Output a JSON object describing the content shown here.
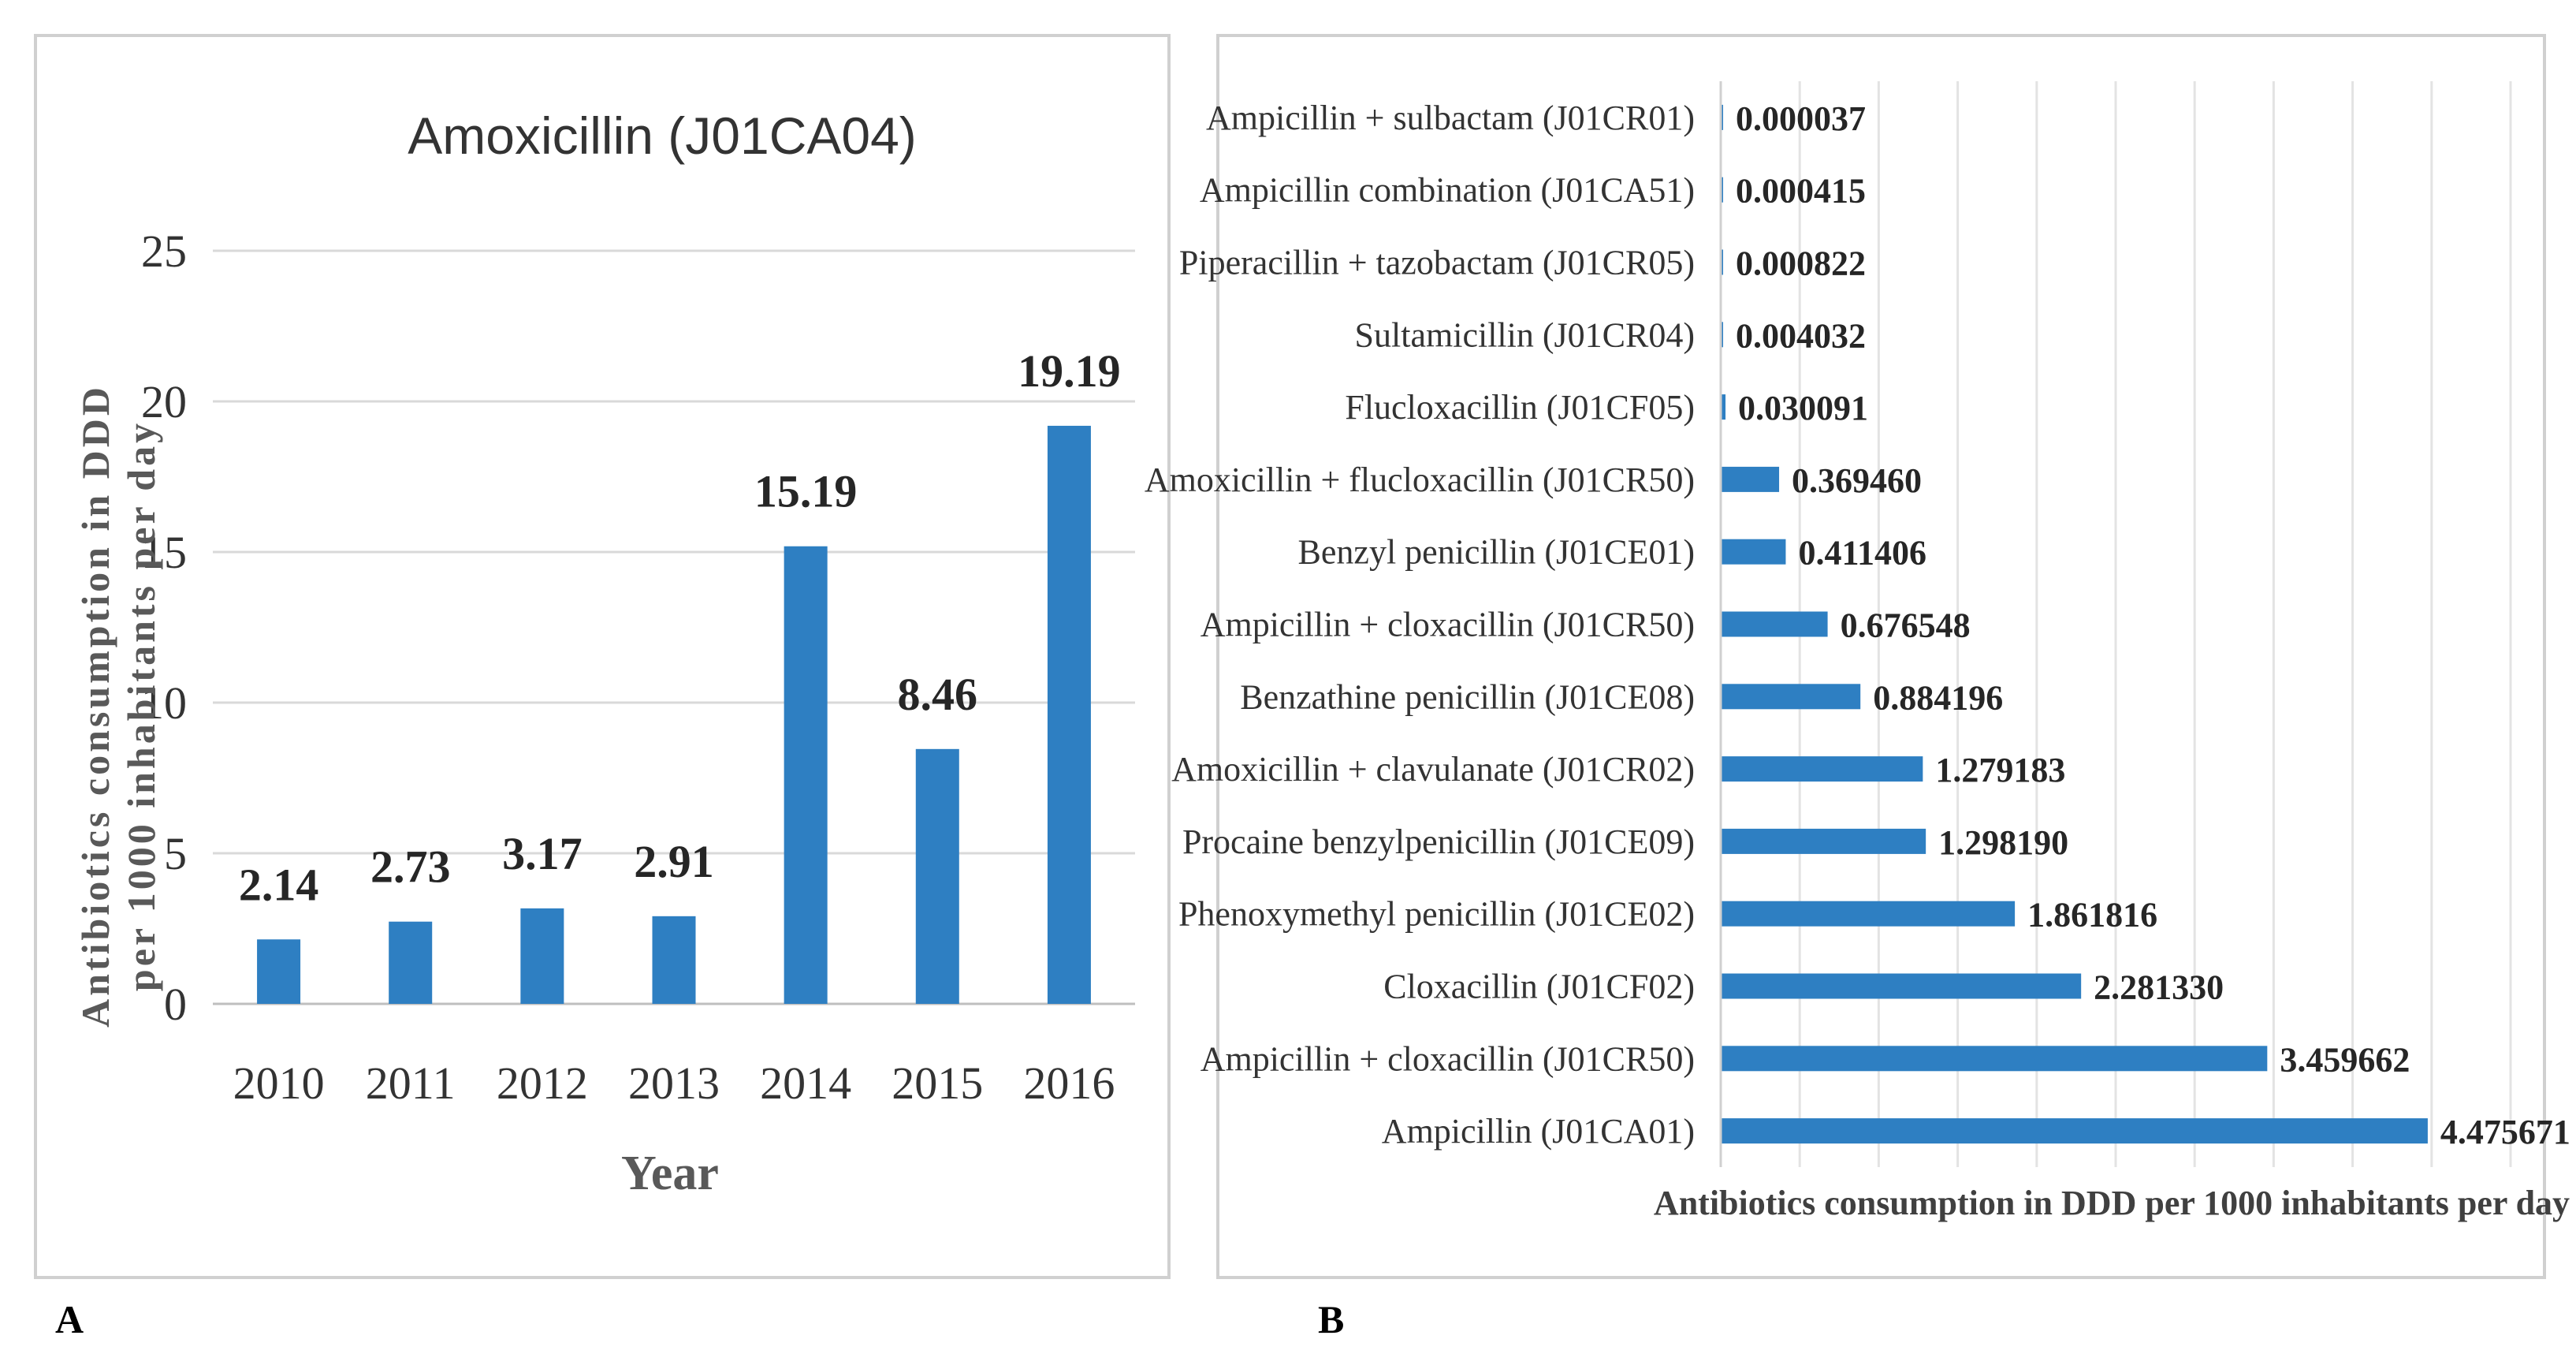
{
  "chart_data": [
    {
      "panel": "A",
      "type": "bar",
      "title": "Amoxicillin (J01CA04)",
      "xlabel": "Year",
      "ylabel": "Antibiotics consumption in DDD per 1000 inhabitants per day",
      "ylim": [
        0,
        25
      ],
      "yticks": [
        0,
        5,
        10,
        15,
        20,
        25
      ],
      "grid": true,
      "categories": [
        "2010",
        "2011",
        "2012",
        "2013",
        "2014",
        "2015",
        "2016"
      ],
      "values": [
        2.14,
        2.73,
        3.17,
        2.91,
        15.19,
        8.46,
        19.19
      ],
      "data_labels": [
        "2.14",
        "2.73",
        "3.17",
        "2.91",
        "15.19",
        "8.46",
        "19.19"
      ],
      "color": "#2E7FC2"
    },
    {
      "panel": "B",
      "type": "bar",
      "orientation": "horizontal",
      "xlabel": "Antibiotics consumption in DDD per 1000 inhabitants per day",
      "xlim": [
        0,
        5
      ],
      "grid": true,
      "color": "#2E7FC2",
      "categories": [
        "Ampicillin + sulbactam (J01CR01)",
        "Ampicillin combination (J01CA51)",
        "Piperacillin + tazobactam (J01CR05)",
        "Sultamicillin (J01CR04)",
        "Flucloxacillin (J01CF05)",
        "Amoxicillin + flucloxacillin (J01CR50)",
        "Benzyl penicillin (J01CE01)",
        "Ampicillin + cloxacillin (J01CR50)",
        "Benzathine penicillin (J01CE08)",
        "Amoxicillin + clavulanate (J01CR02)",
        "Procaine benzylpenicillin (J01CE09)",
        "Phenoxymethyl penicillin (J01CE02)",
        "Cloxacillin (J01CF02)",
        "Ampicillin + cloxacillin (J01CR50)",
        "Ampicillin (J01CA01)"
      ],
      "values": [
        3.7e-05,
        0.000415,
        0.000822,
        0.004032,
        0.030091,
        0.36946,
        0.411406,
        0.676548,
        0.884196,
        1.279183,
        1.29819,
        1.861816,
        2.28133,
        3.459662,
        4.475671
      ],
      "data_labels": [
        "0.000037",
        "0.000415",
        "0.000822",
        "0.004032",
        "0.030091",
        "0.369460",
        "0.411406",
        "0.676548",
        "0.884196",
        "1.279183",
        "1.298190",
        "1.861816",
        "2.281330",
        "3.459662",
        "4.475671"
      ]
    }
  ],
  "panel_labels": {
    "a": "A",
    "b": "B"
  }
}
